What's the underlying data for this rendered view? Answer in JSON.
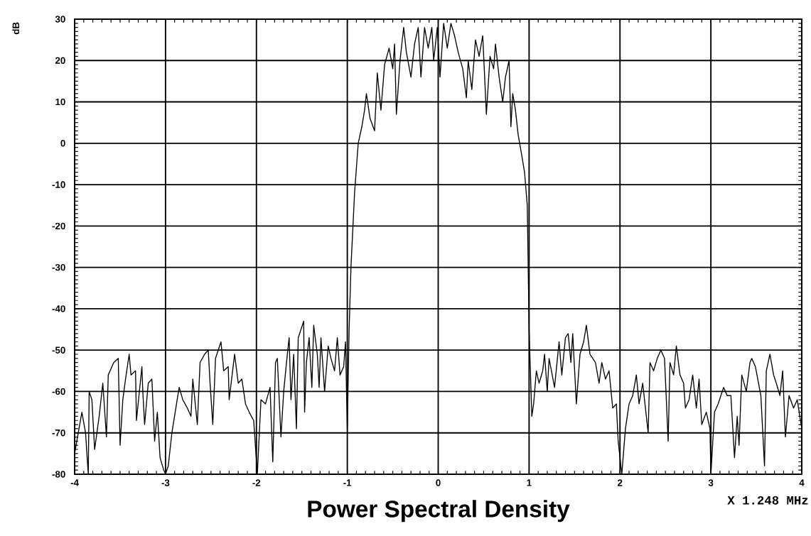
{
  "chart_data": {
    "type": "line",
    "title": "Power Spectral Density",
    "xlabel": "X 1.248 MHz",
    "ylabel": "dB",
    "xlim": [
      -4,
      4
    ],
    "ylim": [
      -80,
      30
    ],
    "xticks": [
      -4,
      {
        "value": -3.9,
        "label": null
      },
      {
        "value": -3.8,
        "label": null
      },
      {
        "value": -3.7,
        "label": null
      },
      {
        "value": -3.6,
        "label": null
      },
      {
        "value": -3.5,
        "label": null
      },
      {
        "value": -3.4,
        "label": null
      },
      {
        "value": -3.3,
        "label": null
      },
      {
        "value": -3.2,
        "label": null
      },
      {
        "value": -3.1,
        "label": null
      },
      -3,
      {
        "value": -2.9,
        "label": null
      },
      {
        "value": -2.8,
        "label": null
      },
      {
        "value": -2.7,
        "label": null
      },
      {
        "value": -2.6,
        "label": null
      },
      {
        "value": -2.5,
        "label": null
      },
      {
        "value": -2.4,
        "label": null
      },
      {
        "value": -2.3,
        "label": null
      },
      {
        "value": -2.2,
        "label": null
      },
      {
        "value": -2.1,
        "label": null
      },
      -2,
      {
        "value": -1.9,
        "label": null
      },
      {
        "value": -1.8,
        "label": null
      },
      {
        "value": -1.7,
        "label": null
      },
      {
        "value": -1.6,
        "label": null
      },
      {
        "value": -1.5,
        "label": null
      },
      {
        "value": -1.4,
        "label": null
      },
      {
        "value": -1.3,
        "label": null
      },
      {
        "value": -1.2,
        "label": null
      },
      {
        "value": -1.1,
        "label": null
      },
      -1,
      {
        "value": -0.9,
        "label": null
      },
      {
        "value": -0.8,
        "label": null
      },
      {
        "value": -0.7,
        "label": null
      },
      {
        "value": -0.6,
        "label": null
      },
      {
        "value": -0.5,
        "label": null
      },
      {
        "value": -0.4,
        "label": null
      },
      {
        "value": -0.3,
        "label": null
      },
      {
        "value": -0.2,
        "label": null
      },
      {
        "value": -0.1,
        "label": null
      },
      0,
      {
        "value": 0.1,
        "label": null
      },
      {
        "value": 0.2,
        "label": null
      },
      {
        "value": 0.3,
        "label": null
      },
      {
        "value": 0.4,
        "label": null
      },
      {
        "value": 0.5,
        "label": null
      },
      {
        "value": 0.6,
        "label": null
      },
      {
        "value": 0.7,
        "label": null
      },
      {
        "value": 0.8,
        "label": null
      },
      {
        "value": 0.9,
        "label": null
      },
      1,
      {
        "value": 1.1,
        "label": null
      },
      {
        "value": 1.2,
        "label": null
      },
      {
        "value": 1.3,
        "label": null
      },
      {
        "value": 1.4,
        "label": null
      },
      {
        "value": 1.5,
        "label": null
      },
      {
        "value": 1.6,
        "label": null
      },
      {
        "value": 1.7,
        "label": null
      },
      {
        "value": 1.8,
        "label": null
      },
      {
        "value": 1.9,
        "label": null
      },
      2,
      {
        "value": 2.1,
        "label": null
      },
      {
        "value": 2.2,
        "label": null
      },
      {
        "value": 2.3,
        "label": null
      },
      {
        "value": 2.4,
        "label": null
      },
      {
        "value": 2.5,
        "label": null
      },
      {
        "value": 2.6,
        "label": null
      },
      {
        "value": 2.7,
        "label": null
      },
      {
        "value": 2.8,
        "label": null
      },
      {
        "value": 2.9,
        "label": null
      },
      3,
      {
        "value": 3.1,
        "label": null
      },
      {
        "value": 3.2,
        "label": null
      },
      {
        "value": 3.3,
        "label": null
      },
      {
        "value": 3.4,
        "label": null
      },
      {
        "value": 3.5,
        "label": null
      },
      {
        "value": 3.6,
        "label": null
      },
      {
        "value": 3.7,
        "label": null
      },
      {
        "value": 3.8,
        "label": null
      },
      {
        "value": 3.9,
        "label": null
      },
      4
    ],
    "yticks": [
      -80,
      {
        "value": -79,
        "label": null
      },
      {
        "value": -78,
        "label": null
      },
      {
        "value": -77,
        "label": null
      },
      {
        "value": -76,
        "label": null
      },
      {
        "value": -75,
        "label": null
      },
      {
        "value": -74,
        "label": null
      },
      {
        "value": -73,
        "label": null
      },
      {
        "value": -72,
        "label": null
      },
      {
        "value": -71,
        "label": null
      },
      -70,
      {
        "value": -69,
        "label": null
      },
      {
        "value": -68,
        "label": null
      },
      {
        "value": -67,
        "label": null
      },
      {
        "value": -66,
        "label": null
      },
      {
        "value": -65,
        "label": null
      },
      {
        "value": -64,
        "label": null
      },
      {
        "value": -63,
        "label": null
      },
      {
        "value": -62,
        "label": null
      },
      {
        "value": -61,
        "label": null
      },
      -60,
      {
        "value": -59,
        "label": null
      },
      {
        "value": -58,
        "label": null
      },
      {
        "value": -57,
        "label": null
      },
      {
        "value": -56,
        "label": null
      },
      {
        "value": -55,
        "label": null
      },
      {
        "value": -54,
        "label": null
      },
      {
        "value": -53,
        "label": null
      },
      {
        "value": -52,
        "label": null
      },
      {
        "value": -51,
        "label": null
      },
      -50,
      {
        "value": -49,
        "label": null
      },
      {
        "value": -48,
        "label": null
      },
      {
        "value": -47,
        "label": null
      },
      {
        "value": -46,
        "label": null
      },
      {
        "value": -45,
        "label": null
      },
      {
        "value": -44,
        "label": null
      },
      {
        "value": -43,
        "label": null
      },
      {
        "value": -42,
        "label": null
      },
      {
        "value": -41,
        "label": null
      },
      -40,
      {
        "value": -39,
        "label": null
      },
      {
        "value": -38,
        "label": null
      },
      {
        "value": -37,
        "label": null
      },
      {
        "value": -36,
        "label": null
      },
      {
        "value": -35,
        "label": null
      },
      {
        "value": -34,
        "label": null
      },
      {
        "value": -33,
        "label": null
      },
      {
        "value": -32,
        "label": null
      },
      {
        "value": -31,
        "label": null
      },
      -30,
      {
        "value": -29,
        "label": null
      },
      {
        "value": -28,
        "label": null
      },
      {
        "value": -27,
        "label": null
      },
      {
        "value": -26,
        "label": null
      },
      {
        "value": -25,
        "label": null
      },
      {
        "value": -24,
        "label": null
      },
      {
        "value": -23,
        "label": null
      },
      {
        "value": -22,
        "label": null
      },
      {
        "value": -21,
        "label": null
      },
      -20,
      {
        "value": -19,
        "label": null
      },
      {
        "value": -18,
        "label": null
      },
      {
        "value": -17,
        "label": null
      },
      {
        "value": -16,
        "label": null
      },
      {
        "value": -15,
        "label": null
      },
      {
        "value": -14,
        "label": null
      },
      {
        "value": -13,
        "label": null
      },
      {
        "value": -12,
        "label": null
      },
      {
        "value": -11,
        "label": null
      },
      -10,
      {
        "value": -9,
        "label": null
      },
      {
        "value": -8,
        "label": null
      },
      {
        "value": -7,
        "label": null
      },
      {
        "value": -6,
        "label": null
      },
      {
        "value": -5,
        "label": null
      },
      {
        "value": -4,
        "label": null
      },
      {
        "value": -3,
        "label": null
      },
      {
        "value": -2,
        "label": null
      },
      {
        "value": -1,
        "label": null
      },
      0,
      {
        "value": 1,
        "label": null
      },
      {
        "value": 2,
        "label": null
      },
      {
        "value": 3,
        "label": null
      },
      {
        "value": 4,
        "label": null
      },
      {
        "value": 5,
        "label": null
      },
      {
        "value": 6,
        "label": null
      },
      {
        "value": 7,
        "label": null
      },
      {
        "value": 8,
        "label": null
      },
      {
        "value": 9,
        "label": null
      },
      10,
      {
        "value": 11,
        "label": null
      },
      {
        "value": 12,
        "label": null
      },
      {
        "value": 13,
        "label": null
      },
      {
        "value": 14,
        "label": null
      },
      {
        "value": 15,
        "label": null
      },
      {
        "value": 16,
        "label": null
      },
      {
        "value": 17,
        "label": null
      },
      {
        "value": 18,
        "label": null
      },
      {
        "value": 19,
        "label": null
      },
      20,
      {
        "value": 21,
        "label": null
      },
      {
        "value": 22,
        "label": null
      },
      {
        "value": 23,
        "label": null
      },
      {
        "value": 24,
        "label": null
      },
      {
        "value": 25,
        "label": null
      },
      {
        "value": 26,
        "label": null
      },
      {
        "value": 27,
        "label": null
      },
      {
        "value": 28,
        "label": null
      },
      {
        "value": 29,
        "label": null
      },
      30
    ],
    "grid": true,
    "line_style": "solid",
    "series": [
      {
        "color": "#000000",
        "x": [
          -4.0,
          -3.96,
          -3.92,
          -3.88,
          -3.85,
          -3.84,
          -3.81,
          -3.78,
          -3.73,
          -3.69,
          -3.65,
          -3.63,
          -3.57,
          -3.52,
          -3.5,
          -3.47,
          -3.44,
          -3.4,
          -3.38,
          -3.33,
          -3.32,
          -3.26,
          -3.25,
          -3.23,
          -3.19,
          -3.15,
          -3.12,
          -3.09,
          -3.06,
          -3.02,
          -3.0,
          -2.97,
          -2.93,
          -2.85,
          -2.81,
          -2.76,
          -2.72,
          -2.7,
          -2.65,
          -2.62,
          -2.57,
          -2.53,
          -2.51,
          -2.48,
          -2.45,
          -2.39,
          -2.36,
          -2.31,
          -2.3,
          -2.24,
          -2.2,
          -2.16,
          -2.12,
          -2.08,
          -2.03,
          -1.99,
          -1.95,
          -1.9,
          -1.85,
          -1.82,
          -1.79,
          -1.77,
          -1.73,
          -1.7,
          -1.66,
          -1.64,
          -1.62,
          -1.59,
          -1.56,
          -1.54,
          -1.48,
          -1.47,
          -1.45,
          -1.42,
          -1.39,
          -1.37,
          -1.33,
          -1.31,
          -1.29,
          -1.25,
          -1.21,
          -1.18,
          -1.14,
          -1.11,
          -1.08,
          -1.04,
          -1.02,
          -1.0,
          -0.98,
          -0.96,
          -0.92,
          -0.88,
          -0.84,
          -0.81,
          -0.79,
          -0.75,
          -0.7,
          -0.67,
          -0.63,
          -0.59,
          -0.54,
          -0.5,
          -0.48,
          -0.46,
          -0.42,
          -0.38,
          -0.35,
          -0.3,
          -0.26,
          -0.22,
          -0.19,
          -0.15,
          -0.11,
          -0.07,
          -0.05,
          -0.01,
          0.02,
          0.06,
          0.1,
          0.14,
          0.18,
          0.22,
          0.27,
          0.31,
          0.33,
          0.37,
          0.41,
          0.45,
          0.49,
          0.53,
          0.57,
          0.61,
          0.63,
          0.67,
          0.71,
          0.74,
          0.78,
          0.8,
          0.82,
          0.85,
          0.88,
          0.92,
          0.95,
          0.98,
          0.99,
          1.0,
          1.03,
          1.05,
          1.08,
          1.11,
          1.15,
          1.17,
          1.2,
          1.22,
          1.28,
          1.33,
          1.36,
          1.4,
          1.43,
          1.46,
          1.48,
          1.52,
          1.56,
          1.6,
          1.63,
          1.67,
          1.73,
          1.77,
          1.8,
          1.84,
          1.88,
          1.92,
          1.96,
          1.98,
          2.02,
          2.06,
          2.1,
          2.14,
          2.18,
          2.21,
          2.25,
          2.27,
          2.31,
          2.33,
          2.37,
          2.41,
          2.45,
          2.49,
          2.53,
          2.55,
          2.59,
          2.62,
          2.66,
          2.7,
          2.72,
          2.76,
          2.8,
          2.84,
          2.87,
          2.9,
          2.95,
          2.99,
          3.0,
          3.04,
          3.08,
          3.14,
          3.18,
          3.22,
          3.26,
          3.29,
          3.31,
          3.34,
          3.39,
          3.43,
          3.45,
          3.49,
          3.55,
          3.59,
          3.61,
          3.65,
          3.69,
          3.72,
          3.76,
          3.79,
          3.82,
          3.86,
          3.91,
          3.95,
          4.0
        ],
        "values": [
          -75,
          -70,
          -65,
          -70,
          -80,
          -60,
          -62,
          -74,
          -66,
          -58,
          -71,
          -56,
          -53,
          -52,
          -73,
          -62,
          -57,
          -51,
          -56,
          -55,
          -67,
          -54,
          -60,
          -68,
          -58,
          -57,
          -72,
          -65,
          -76,
          -79,
          -80,
          -78,
          -70,
          -59,
          -62,
          -64,
          -66,
          -57,
          -68,
          -53,
          -51,
          -50,
          -58,
          -68,
          -52,
          -48,
          -55,
          -54,
          -62,
          -51,
          -58,
          -57,
          -63,
          -65,
          -67,
          -80,
          -62,
          -63,
          -59,
          -77,
          -53,
          -52,
          -71,
          -60,
          -51,
          -47,
          -62,
          -51,
          -69,
          -47,
          -43,
          -65,
          -53,
          -47,
          -59,
          -44,
          -51,
          -59,
          -47,
          -60,
          -49,
          -52,
          -55,
          -47,
          -56,
          -54,
          -48,
          -69,
          -45,
          -30,
          -12,
          0,
          4,
          8,
          12,
          6,
          3,
          17,
          8,
          19,
          23,
          18,
          24,
          7,
          20,
          28,
          22,
          16,
          24,
          28,
          16,
          28,
          23,
          28,
          20,
          28,
          16,
          29,
          23,
          29,
          26,
          22,
          18,
          11,
          20,
          13,
          25,
          21,
          26,
          7,
          21,
          18,
          24,
          16,
          10,
          16,
          20,
          4,
          12,
          8,
          2,
          -3,
          -7,
          -15,
          -30,
          -45,
          -66,
          -63,
          -55,
          -58,
          -55,
          -51,
          -60,
          -52,
          -59,
          -48,
          -56,
          -47,
          -46,
          -53,
          -46,
          -63,
          -51,
          -48,
          -44,
          -51,
          -53,
          -58,
          -53,
          -57,
          -55,
          -64,
          -63,
          -72,
          -80,
          -69,
          -63,
          -61,
          -56,
          -63,
          -58,
          -62,
          -70,
          -53,
          -55,
          -52,
          -50,
          -52,
          -72,
          -53,
          -56,
          -49,
          -56,
          -58,
          -64,
          -62,
          -56,
          -64,
          -57,
          -68,
          -65,
          -69,
          -80,
          -65,
          -63,
          -59,
          -61,
          -61,
          -76,
          -66,
          -73,
          -56,
          -60,
          -53,
          -52,
          -54,
          -61,
          -78,
          -55,
          -51,
          -56,
          -58,
          -61,
          -55,
          -71,
          -61,
          -64,
          -62,
          -69
        ]
      }
    ]
  }
}
